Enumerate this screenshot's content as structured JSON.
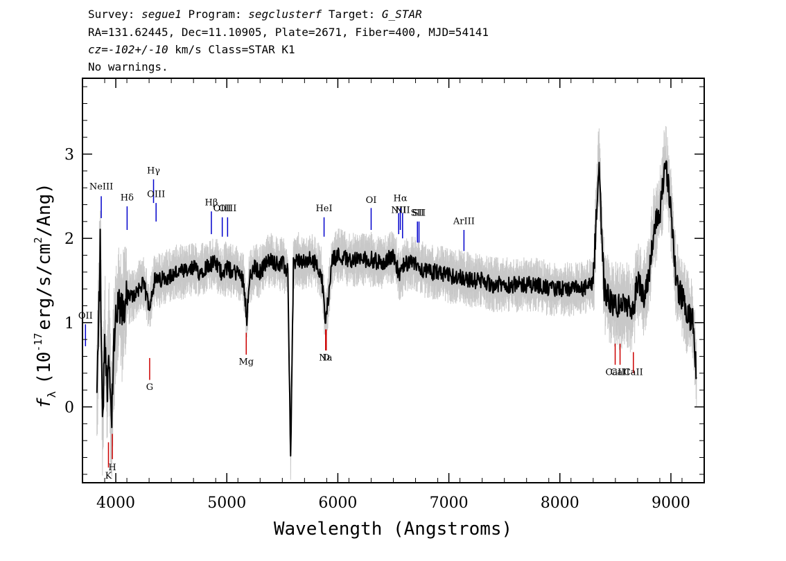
{
  "header": {
    "survey_label": "Survey:",
    "survey_value": "segue1",
    "program_label": "Program:",
    "program_value": "segclusterf",
    "target_label": "Target:",
    "target_value": "G_STAR",
    "line2": "RA=131.62445, Dec=11.10905, Plate=2671, Fiber=400, MJD=54141",
    "cz_label": "cz=",
    "cz_value": "-102+/-10",
    "cz_rest": "km/s Class=STAR K1",
    "line4": "No warnings."
  },
  "chart_data": {
    "type": "line",
    "title": "",
    "xlabel": "Wavelength (Angstroms)",
    "ylabel_prefix": "f",
    "ylabel_sub": "λ",
    "ylabel_main": "(10",
    "ylabel_exp": "-17",
    "ylabel_units": "erg/s/cm",
    "ylabel_exp2": "2",
    "ylabel_end": "/Ang)",
    "xlim": [
      3700,
      9300
    ],
    "ylim": [
      -0.9,
      3.9
    ],
    "x_ticks": [
      4000,
      5000,
      6000,
      7000,
      8000,
      9000
    ],
    "x_tick_labels": [
      "4000",
      "5000",
      "6000",
      "7000",
      "8000",
      "9000"
    ],
    "y_ticks": [
      0,
      1,
      2,
      3
    ],
    "y_tick_labels": [
      "0",
      "1",
      "2",
      "3"
    ],
    "colors": {
      "flux": "#000000",
      "error_band": "#c8c8c8",
      "emission": "#0000cc",
      "absorption": "#cc0000"
    },
    "series": [
      {
        "role": "flux",
        "x": [
          3830,
          3860,
          3880,
          3900,
          3920,
          3940,
          3960,
          3980,
          4000,
          4030,
          4060,
          4100,
          4150,
          4200,
          4250,
          4300,
          4350,
          4400,
          4450,
          4500,
          4550,
          4600,
          4650,
          4700,
          4750,
          4800,
          4850,
          4900,
          4950,
          5000,
          5050,
          5100,
          5150,
          5180,
          5200,
          5250,
          5300,
          5350,
          5400,
          5450,
          5500,
          5550,
          5575,
          5600,
          5650,
          5700,
          5750,
          5800,
          5850,
          5890,
          5950,
          6000,
          6100,
          6200,
          6300,
          6400,
          6500,
          6560,
          6600,
          6700,
          6800,
          6900,
          7000,
          7100,
          7200,
          7300,
          7400,
          7500,
          7600,
          7700,
          7800,
          7900,
          8000,
          8100,
          8200,
          8300,
          8350,
          8400,
          8450,
          8500,
          8550,
          8600,
          8650,
          8700,
          8750,
          8800,
          8850,
          8900,
          8950,
          9000,
          9050,
          9100,
          9150,
          9200,
          9230
        ],
        "y": [
          0.1,
          1.9,
          -0.3,
          0.9,
          0.2,
          0.7,
          -0.2,
          0.6,
          1.0,
          1.2,
          1.1,
          1.3,
          1.3,
          1.4,
          1.45,
          1.2,
          1.5,
          1.5,
          1.55,
          1.55,
          1.6,
          1.6,
          1.6,
          1.65,
          1.6,
          1.65,
          1.7,
          1.7,
          1.6,
          1.65,
          1.6,
          1.6,
          1.5,
          1.05,
          1.5,
          1.65,
          1.6,
          1.7,
          1.75,
          1.7,
          1.7,
          1.6,
          -0.62,
          1.7,
          1.75,
          1.7,
          1.75,
          1.7,
          1.6,
          1.0,
          1.75,
          1.8,
          1.75,
          1.75,
          1.75,
          1.7,
          1.8,
          1.55,
          1.7,
          1.7,
          1.6,
          1.6,
          1.55,
          1.55,
          1.5,
          1.5,
          1.45,
          1.45,
          1.45,
          1.45,
          1.45,
          1.4,
          1.4,
          1.4,
          1.4,
          1.45,
          2.9,
          1.4,
          1.25,
          1.2,
          1.2,
          1.25,
          1.05,
          1.5,
          1.3,
          1.55,
          2.15,
          2.3,
          2.9,
          2.35,
          1.45,
          1.3,
          1.1,
          1.0,
          0.35
        ]
      }
    ],
    "line_markers": [
      {
        "label": "NeIII",
        "x": 3869,
        "kind": "emission",
        "y0": 2.24,
        "y1": 2.5,
        "ly": 2.58
      },
      {
        "label": "Hδ",
        "x": 4102,
        "kind": "emission",
        "y0": 2.1,
        "y1": 2.38,
        "ly": 2.45
      },
      {
        "label": "Hγ",
        "x": 4340,
        "kind": "emission",
        "y0": 2.42,
        "y1": 2.7,
        "ly": 2.77
      },
      {
        "label": "OIII",
        "x": 4363,
        "kind": "emission",
        "y0": 2.2,
        "y1": 2.42,
        "ly": 2.49
      },
      {
        "label": "Hβ",
        "x": 4861,
        "kind": "emission",
        "y0": 2.05,
        "y1": 2.32,
        "ly": 2.39
      },
      {
        "label": "OIII",
        "x": 4959,
        "kind": "emission",
        "y0": 2.02,
        "y1": 2.25,
        "ly": 2.32
      },
      {
        "label": "OIII",
        "x": 5007,
        "kind": "emission",
        "y0": 2.02,
        "y1": 2.25,
        "ly": 2.32
      },
      {
        "label": "HeI",
        "x": 5876,
        "kind": "emission",
        "y0": 2.02,
        "y1": 2.25,
        "ly": 2.32
      },
      {
        "label": "OI",
        "x": 6300,
        "kind": "emission",
        "y0": 2.1,
        "y1": 2.36,
        "ly": 2.42
      },
      {
        "label": "NII",
        "x": 6548,
        "kind": "emission",
        "y0": 2.05,
        "y1": 2.3,
        "ly": 2.3
      },
      {
        "label": "Hα",
        "x": 6563,
        "kind": "emission",
        "y0": 2.1,
        "y1": 2.36,
        "ly": 2.44
      },
      {
        "label": "NII",
        "x": 6583,
        "kind": "emission",
        "y0": 2.0,
        "y1": 2.3,
        "ly": 2.3
      },
      {
        "label": "SII",
        "x": 6717,
        "kind": "emission",
        "y0": 1.95,
        "y1": 2.2,
        "ly": 2.27
      },
      {
        "label": "SII",
        "x": 6731,
        "kind": "emission",
        "y0": 1.95,
        "y1": 2.2,
        "ly": 2.27
      },
      {
        "label": "ArIII",
        "x": 7136,
        "kind": "emission",
        "y0": 1.85,
        "y1": 2.1,
        "ly": 2.17
      },
      {
        "label": "OII",
        "x": 3727,
        "kind": "emission",
        "y0": 0.72,
        "y1": 0.98,
        "ly": 1.05
      },
      {
        "label": "K",
        "x": 3934,
        "kind": "absorption",
        "y0": -0.72,
        "y1": -0.42,
        "ly": -0.85
      },
      {
        "label": "H",
        "x": 3969,
        "kind": "absorption",
        "y0": -0.62,
        "y1": -0.32,
        "ly": -0.75
      },
      {
        "label": "G",
        "x": 4305,
        "kind": "absorption",
        "y0": 0.32,
        "y1": 0.58,
        "ly": 0.2
      },
      {
        "label": "Mg",
        "x": 5175,
        "kind": "absorption",
        "y0": 0.62,
        "y1": 0.88,
        "ly": 0.5
      },
      {
        "label": "Na",
        "x": 5890,
        "kind": "absorption",
        "y0": 0.67,
        "y1": 0.92,
        "ly": 0.55
      },
      {
        "label": "D",
        "x": 5896,
        "kind": "absorption",
        "y0": 0.67,
        "y1": 0.92,
        "ly": 0.55
      },
      {
        "label": "CaII",
        "x": 8498,
        "kind": "absorption",
        "y0": 0.5,
        "y1": 0.75,
        "ly": 0.38
      },
      {
        "label": "CaII",
        "x": 8542,
        "kind": "absorption",
        "y0": 0.5,
        "y1": 0.75,
        "ly": 0.38
      },
      {
        "label": "CaII",
        "x": 8662,
        "kind": "absorption",
        "y0": 0.4,
        "y1": 0.65,
        "ly": 0.38
      }
    ]
  }
}
